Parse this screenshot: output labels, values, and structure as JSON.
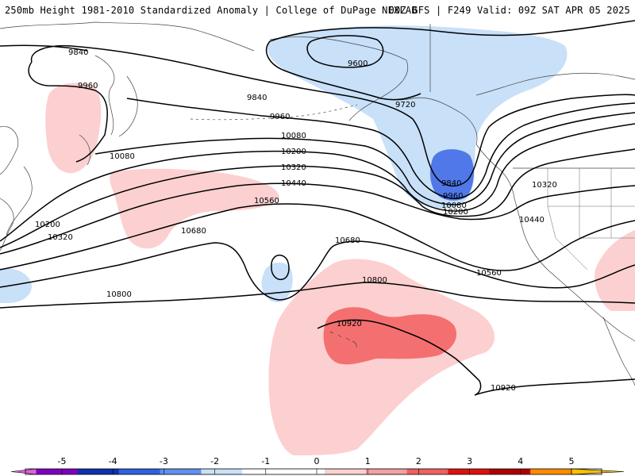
{
  "header": {
    "title_left": "250mb Height 1981-2010 Standardized Anomaly | College of DuPage NEXLAB",
    "title_right": "00Z GFS | F249 Valid: 09Z SAT APR 05 2025"
  },
  "contour_labels": [
    "9600",
    "9720",
    "9840",
    "9840",
    "9840",
    "9960",
    "9960",
    "9960",
    "10080",
    "10080",
    "10080",
    "10200",
    "10200",
    "10200",
    "10320",
    "10320",
    "10320",
    "10440",
    "10440",
    "10560",
    "10560",
    "10680",
    "10680",
    "10800",
    "10800",
    "10920",
    "10920"
  ],
  "colorbar": {
    "ticks": [
      "-5",
      "-4",
      "-3",
      "-2",
      "-1",
      "0",
      "1",
      "2",
      "3",
      "4",
      "5"
    ],
    "colors": [
      "#e060e0",
      "#8000c0",
      "#1030b0",
      "#3060e0",
      "#6090f0",
      "#c8e0f8",
      "#ffffff",
      "#ffffff",
      "#fcd0d0",
      "#f4a0a0",
      "#f06060",
      "#e01010",
      "#b00000",
      "#ff8c00",
      "#ffc000"
    ]
  },
  "anomaly_colors": {
    "light_blue": "#c8e0f8",
    "dark_blue": "#5078e8",
    "light_red": "#fcd0d0",
    "medium_red": "#f47070"
  }
}
